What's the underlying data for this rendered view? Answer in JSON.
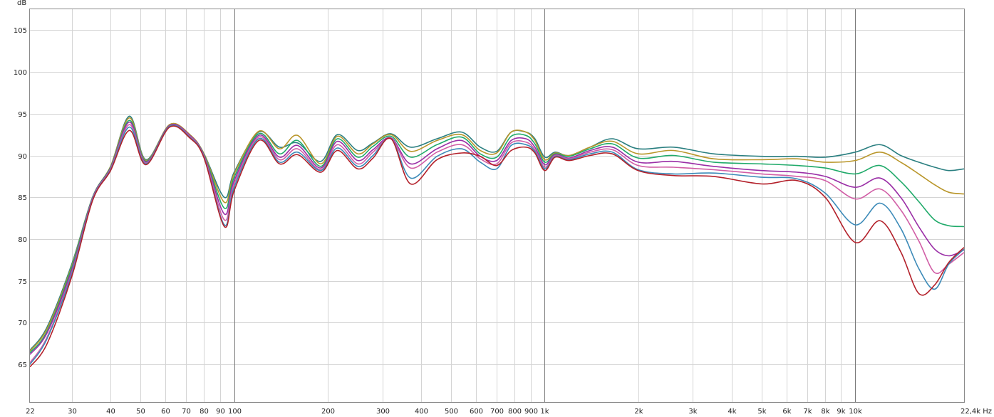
{
  "chart_data": {
    "type": "line",
    "title": "",
    "ylabel": "dB",
    "xlabel": "Hz",
    "x_scale": "log",
    "xlim": [
      22,
      22400
    ],
    "ylim": [
      60.5,
      107.5
    ],
    "grid": true,
    "x_ticks": [
      {
        "value": 22,
        "label": "22"
      },
      {
        "value": 30,
        "label": "30"
      },
      {
        "value": 40,
        "label": "40"
      },
      {
        "value": 50,
        "label": "50"
      },
      {
        "value": 60,
        "label": "60"
      },
      {
        "value": 70,
        "label": "70"
      },
      {
        "value": 80,
        "label": "80"
      },
      {
        "value": 90,
        "label": "90"
      },
      {
        "value": 100,
        "label": "100"
      },
      {
        "value": 200,
        "label": "200"
      },
      {
        "value": 300,
        "label": "300"
      },
      {
        "value": 400,
        "label": "400"
      },
      {
        "value": 500,
        "label": "500"
      },
      {
        "value": 600,
        "label": "600"
      },
      {
        "value": 700,
        "label": "700"
      },
      {
        "value": 800,
        "label": "800"
      },
      {
        "value": 900,
        "label": "900"
      },
      {
        "value": 1000,
        "label": "1k"
      },
      {
        "value": 2000,
        "label": "2k"
      },
      {
        "value": 3000,
        "label": "3k"
      },
      {
        "value": 4000,
        "label": "4k"
      },
      {
        "value": 5000,
        "label": "5k"
      },
      {
        "value": 6000,
        "label": "6k"
      },
      {
        "value": 7000,
        "label": "7k"
      },
      {
        "value": 8000,
        "label": "8k"
      },
      {
        "value": 9000,
        "label": "9k"
      },
      {
        "value": 10000,
        "label": "10k"
      },
      {
        "value": 22400,
        "label": "22,4k Hz"
      }
    ],
    "major_x_gridlines": [
      100,
      1000,
      10000
    ],
    "y_ticks": [
      65,
      70,
      75,
      80,
      85,
      90,
      95,
      100,
      105
    ],
    "x": [
      22,
      25,
      30,
      35,
      40,
      46,
      52,
      62,
      72,
      80,
      93,
      100,
      120,
      140,
      160,
      190,
      215,
      250,
      280,
      320,
      370,
      450,
      540,
      620,
      700,
      780,
      870,
      930,
      1000,
      1080,
      1200,
      1400,
      1650,
      2000,
      2600,
      3500,
      5000,
      6500,
      8000,
      10000,
      12000,
      14000,
      16000,
      18000,
      20000,
      22400
    ],
    "series": [
      {
        "color": "#2a7f80",
        "values": [
          66.7,
          69.5,
          77.0,
          85.0,
          88.7,
          94.7,
          89.5,
          93.7,
          92.5,
          90.2,
          85.0,
          88.0,
          92.8,
          91.0,
          91.5,
          89.3,
          92.5,
          90.6,
          91.5,
          92.6,
          91.0,
          92.0,
          92.8,
          91.0,
          90.5,
          92.8,
          92.8,
          92.0,
          89.8,
          90.4,
          90.0,
          91.0,
          92.0,
          90.8,
          91.0,
          90.2,
          89.9,
          89.9,
          89.8,
          90.4,
          91.3,
          90.0,
          89.2,
          88.6,
          88.2,
          88.4
        ]
      },
      {
        "color": "#b9962a",
        "values": [
          66.6,
          69.3,
          76.8,
          85.0,
          88.7,
          94.5,
          89.4,
          93.7,
          92.5,
          90.2,
          84.4,
          87.8,
          92.9,
          90.8,
          92.4,
          89.0,
          92.3,
          90.2,
          91.4,
          92.5,
          90.5,
          91.8,
          92.5,
          90.6,
          90.3,
          92.8,
          92.8,
          91.8,
          89.5,
          90.3,
          90.0,
          91.0,
          91.7,
          90.2,
          90.6,
          89.6,
          89.5,
          89.6,
          89.2,
          89.4,
          90.4,
          89.2,
          87.8,
          86.5,
          85.6,
          85.4
        ]
      },
      {
        "color": "#20aa6a",
        "values": [
          66.4,
          69.0,
          76.6,
          85.0,
          88.6,
          94.2,
          89.3,
          93.6,
          92.4,
          90.1,
          83.7,
          87.4,
          92.6,
          90.2,
          91.8,
          88.7,
          92.0,
          89.8,
          91.1,
          92.3,
          89.8,
          91.3,
          92.2,
          90.2,
          89.8,
          92.3,
          92.4,
          91.4,
          89.2,
          90.2,
          89.9,
          90.8,
          91.4,
          89.7,
          90.0,
          89.2,
          89.0,
          88.8,
          88.5,
          87.8,
          88.8,
          86.9,
          84.5,
          82.3,
          81.6,
          81.5
        ]
      },
      {
        "color": "#9a2ea6",
        "values": [
          66.2,
          68.8,
          76.3,
          84.9,
          88.5,
          94.0,
          89.2,
          93.6,
          92.4,
          90.0,
          83.0,
          87.0,
          92.4,
          89.8,
          91.2,
          88.5,
          91.7,
          89.4,
          90.7,
          92.1,
          89.0,
          90.8,
          91.8,
          89.9,
          89.4,
          91.8,
          92.0,
          91.0,
          88.9,
          90.1,
          89.7,
          90.6,
          91.0,
          89.2,
          89.3,
          88.7,
          88.2,
          88.0,
          87.5,
          86.2,
          87.3,
          85.0,
          81.5,
          78.8,
          78.0,
          78.7
        ]
      },
      {
        "color": "#d15ea6",
        "values": [
          65.2,
          68.3,
          76.0,
          84.8,
          88.4,
          93.7,
          89.1,
          93.5,
          92.3,
          89.9,
          82.3,
          86.6,
          92.2,
          89.5,
          90.8,
          88.3,
          91.3,
          89.0,
          90.4,
          92.0,
          88.5,
          90.4,
          91.3,
          89.6,
          89.0,
          91.5,
          91.6,
          90.7,
          88.6,
          90.0,
          89.6,
          90.4,
          90.7,
          88.8,
          88.6,
          88.3,
          87.8,
          87.5,
          87.0,
          84.8,
          86.0,
          83.5,
          79.8,
          76.0,
          77.0,
          78.4
        ]
      },
      {
        "color": "#3b8ab8",
        "values": [
          65.0,
          68.1,
          75.8,
          84.7,
          88.3,
          93.4,
          89.0,
          93.5,
          92.2,
          89.8,
          81.7,
          86.2,
          92.0,
          89.2,
          90.4,
          88.2,
          90.9,
          88.7,
          90.0,
          92.0,
          87.3,
          89.9,
          90.8,
          89.2,
          88.4,
          91.2,
          91.3,
          90.5,
          88.4,
          89.9,
          89.5,
          90.2,
          90.4,
          88.3,
          87.8,
          87.9,
          87.4,
          87.2,
          85.5,
          81.7,
          84.3,
          81.3,
          76.5,
          74.0,
          77.0,
          78.8
        ]
      },
      {
        "color": "#b3202a",
        "values": [
          64.7,
          67.5,
          75.5,
          84.6,
          88.2,
          93.0,
          88.9,
          93.4,
          92.1,
          89.7,
          81.5,
          85.8,
          91.8,
          89.0,
          90.1,
          88.0,
          90.6,
          88.4,
          89.7,
          92.0,
          86.6,
          89.5,
          90.3,
          89.9,
          88.8,
          90.6,
          91.0,
          90.3,
          88.2,
          89.8,
          89.4,
          90.0,
          90.2,
          88.2,
          87.6,
          87.5,
          86.6,
          87.0,
          85.0,
          79.6,
          82.2,
          78.5,
          73.5,
          74.5,
          77.2,
          79.0
        ]
      }
    ]
  }
}
